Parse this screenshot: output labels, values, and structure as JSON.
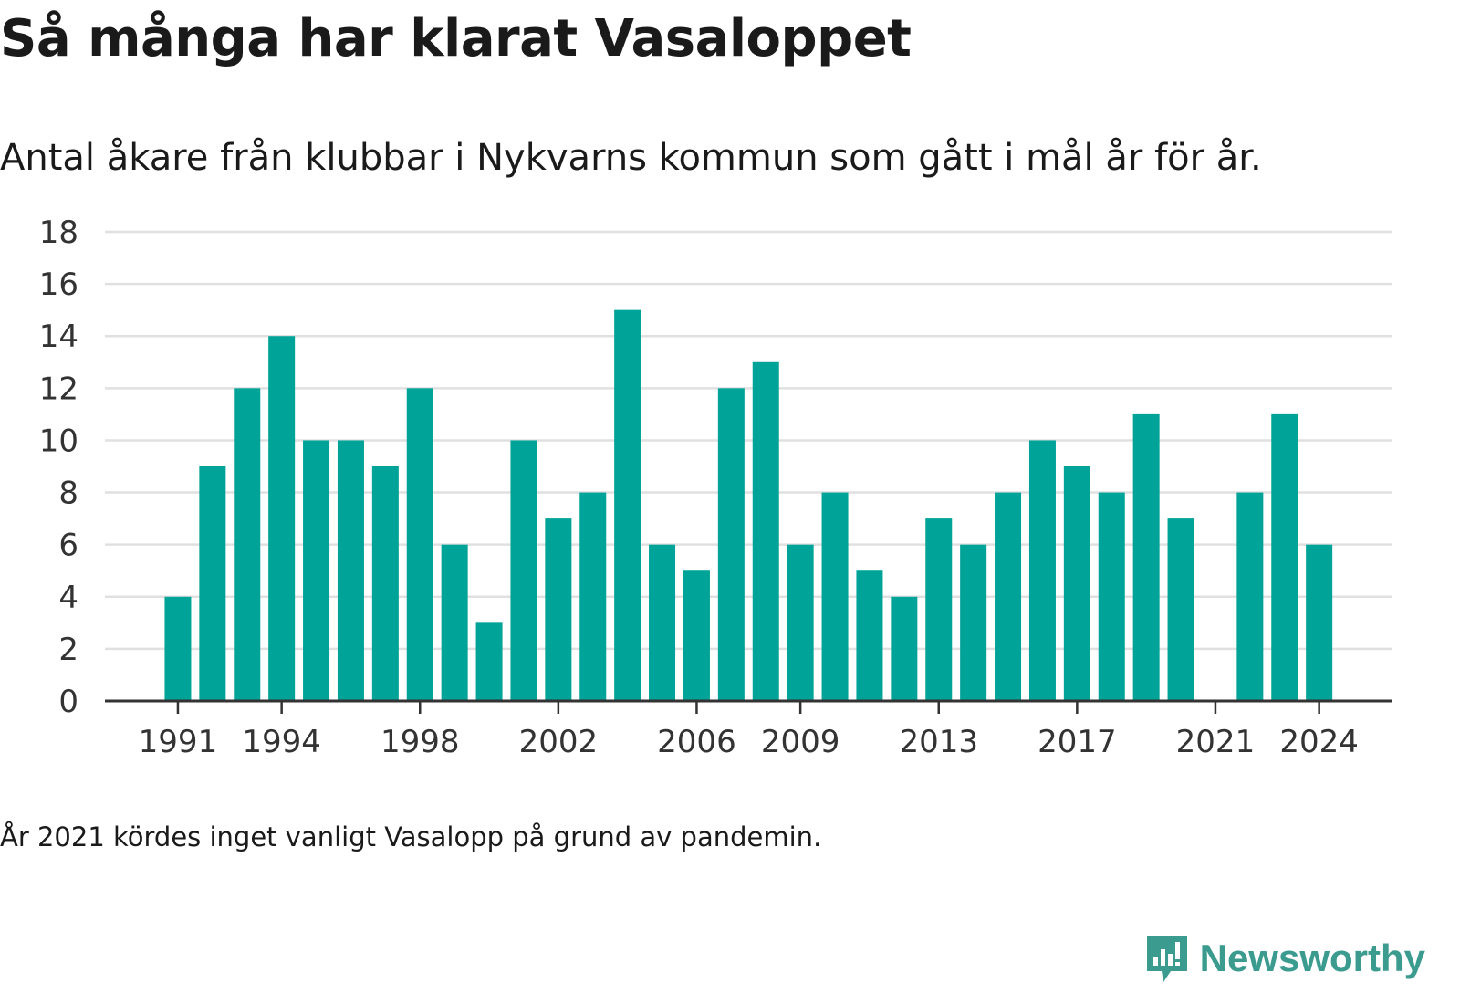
{
  "title": "Så många har klarat Vasaloppet",
  "subtitle": "Antal åkare från klubbar i Nykvarns kommun som gått i mål år för år.",
  "footnote": "År 2021 kördes inget vanligt Vasalopp på grund av pandemin.",
  "brand": {
    "name": "Newsworthy",
    "icon": "newsworthy-logo-icon"
  },
  "colors": {
    "bar": "#00a398",
    "grid": "#e0e0e0",
    "axis": "#333333",
    "text": "#1a1a1a",
    "brand": "#3b9b8f"
  },
  "chart_data": {
    "type": "bar",
    "categories": [
      "1991",
      "1992",
      "1993",
      "1994",
      "1995",
      "1996",
      "1997",
      "1998",
      "1999",
      "2000",
      "2001",
      "2002",
      "2003",
      "2004",
      "2005",
      "2006",
      "2007",
      "2008",
      "2009",
      "2010",
      "2011",
      "2012",
      "2013",
      "2014",
      "2015",
      "2016",
      "2017",
      "2018",
      "2019",
      "2020",
      "2021",
      "2022",
      "2023",
      "2024"
    ],
    "values": [
      4,
      9,
      12,
      14,
      10,
      10,
      9,
      12,
      6,
      3,
      10,
      7,
      8,
      15,
      6,
      5,
      12,
      13,
      6,
      8,
      5,
      4,
      7,
      6,
      8,
      10,
      9,
      8,
      11,
      7,
      null,
      8,
      11,
      6
    ],
    "xticks": [
      "1991",
      "1994",
      "1998",
      "2002",
      "2006",
      "2009",
      "2013",
      "2017",
      "2021",
      "2024"
    ],
    "yticks": [
      0,
      2,
      4,
      6,
      8,
      10,
      12,
      14,
      16,
      18
    ],
    "ylim": [
      0,
      18
    ],
    "grid": true,
    "legend": "none"
  }
}
